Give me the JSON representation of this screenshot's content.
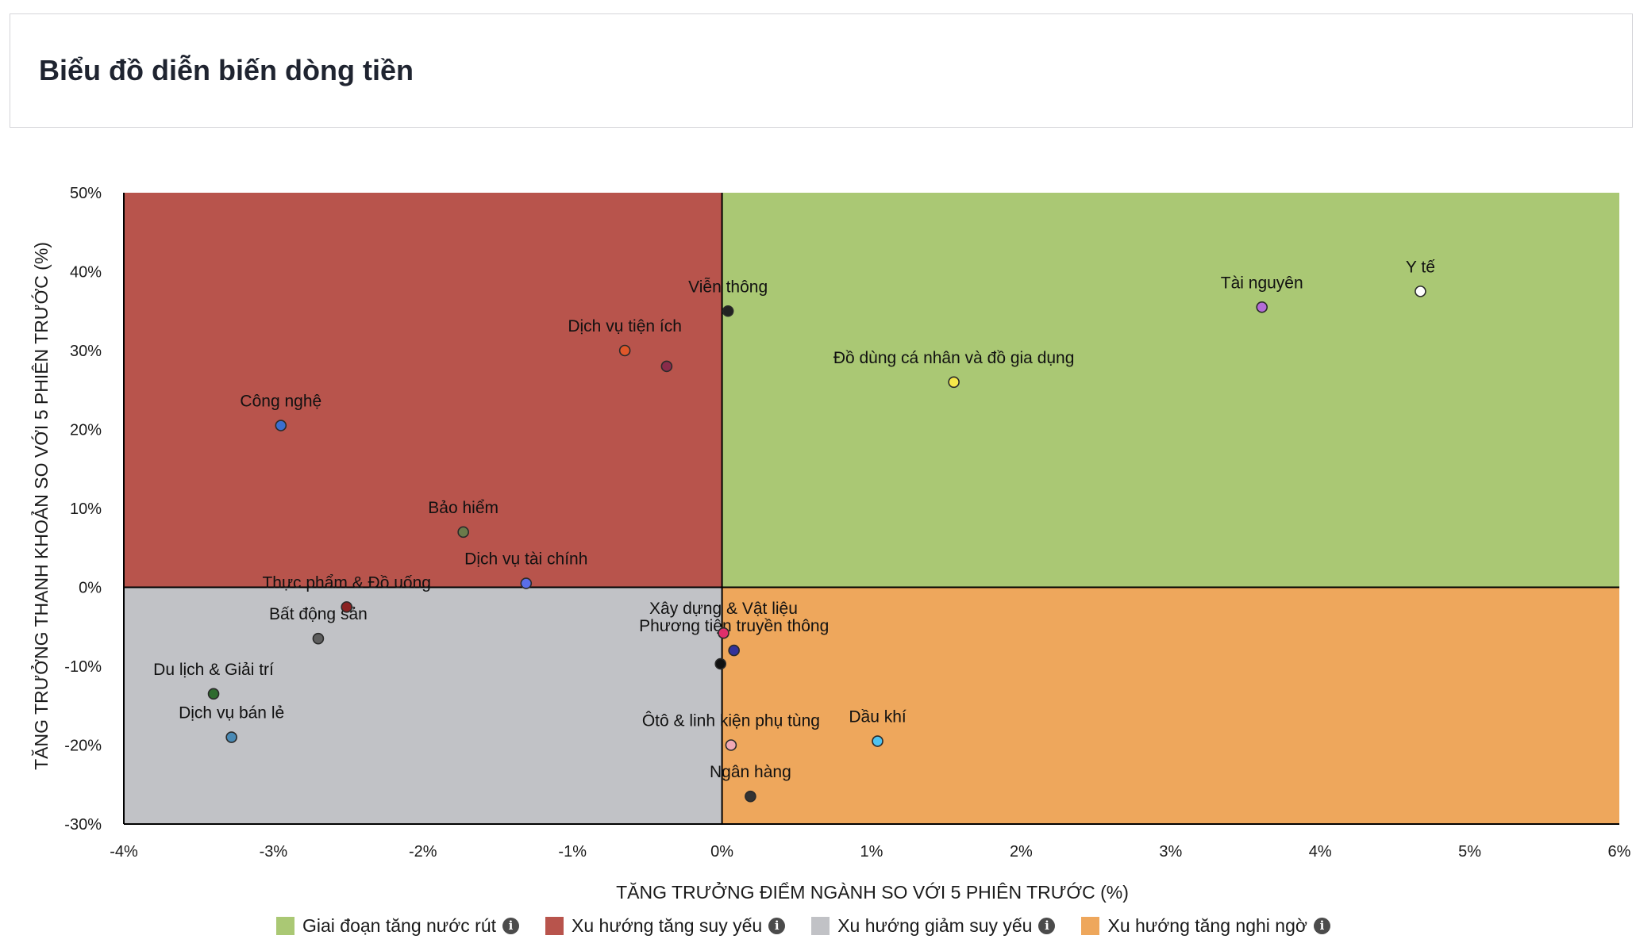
{
  "header": {
    "title": "Biểu đồ diễn biến dòng tiền"
  },
  "chart_data": {
    "type": "scatter",
    "title": "Biểu đồ diễn biến dòng tiền",
    "xlabel": "TĂNG TRƯỞNG ĐIỂM NGÀNH SO VỚI 5 PHIÊN TRƯỚC (%)",
    "ylabel": "TĂNG TRƯỞNG THANH KHOẢN SO VỚI 5 PHIÊN TRƯỚC (%)",
    "xlim": [
      -4,
      6
    ],
    "ylim": [
      -30,
      50
    ],
    "x_ticks": [
      -4,
      -3,
      -2,
      -1,
      0,
      1,
      2,
      3,
      4,
      5,
      6
    ],
    "y_ticks": [
      -30,
      -20,
      -10,
      0,
      10,
      20,
      30,
      40,
      50
    ],
    "x_tick_labels": [
      "-4%",
      "-3%",
      "-2%",
      "-1%",
      "0%",
      "1%",
      "2%",
      "3%",
      "4%",
      "5%",
      "6%"
    ],
    "y_tick_labels": [
      "-30%",
      "-20%",
      "-10%",
      "0%",
      "10%",
      "20%",
      "30%",
      "40%",
      "50%"
    ],
    "quadrants": [
      {
        "name": "Giai đoạn tăng nước rút",
        "x_range": [
          0,
          6
        ],
        "y_range": [
          0,
          50
        ],
        "color": "#aac874"
      },
      {
        "name": "Xu hướng tăng suy yếu",
        "x_range": [
          -4,
          0
        ],
        "y_range": [
          0,
          50
        ],
        "color": "#b8544c"
      },
      {
        "name": "Xu hướng giảm suy yếu",
        "x_range": [
          -4,
          0
        ],
        "y_range": [
          -30,
          0
        ],
        "color": "#c1c2c6"
      },
      {
        "name": "Xu hướng tăng nghi ngờ",
        "x_range": [
          0,
          6
        ],
        "y_range": [
          -30,
          0
        ],
        "color": "#eea75c"
      }
    ],
    "points": [
      {
        "name": "Y tế",
        "x": 4.67,
        "y": 37.5,
        "color": "#ffffff"
      },
      {
        "name": "Tài nguyên",
        "x": 3.61,
        "y": 35.5,
        "color": "#b36cd6"
      },
      {
        "name": "Viễn thông",
        "x": 0.04,
        "y": 35.0,
        "color": "#222222"
      },
      {
        "name": "Đồ dùng cá nhân và đồ gia dụng",
        "x": 1.55,
        "y": 26.0,
        "color": "#f5e84a"
      },
      {
        "name": "Dịch vụ tiện ích",
        "x": -0.65,
        "y": 30.0,
        "color": "#e0572a"
      },
      {
        "name": "",
        "x": -0.37,
        "y": 28.0,
        "color": "#8a2b4a"
      },
      {
        "name": "Công nghệ",
        "x": -2.95,
        "y": 20.5,
        "color": "#3a6fcf"
      },
      {
        "name": "Bảo hiểm",
        "x": -1.73,
        "y": 7.0,
        "color": "#6b7a4a"
      },
      {
        "name": "Dịch vụ tài chính",
        "x": -1.31,
        "y": 0.5,
        "color": "#5a6ee8"
      },
      {
        "name": "Thực phẩm & Đồ uống",
        "x": -2.51,
        "y": -2.5,
        "color": "#8b2222"
      },
      {
        "name": "Bất động sản",
        "x": -2.7,
        "y": -6.5,
        "color": "#5e5e5e"
      },
      {
        "name": "Du lịch & Giải trí",
        "x": -3.4,
        "y": -13.5,
        "color": "#2e6b2e"
      },
      {
        "name": "Dịch vụ bán lẻ",
        "x": -3.28,
        "y": -19.0,
        "color": "#4a8ab5"
      },
      {
        "name": "Xây dựng & Vật liệu",
        "x": 0.01,
        "y": -5.8,
        "color": "#e0306b"
      },
      {
        "name": "Phương tiện truyền thông",
        "x": 0.08,
        "y": -8.0,
        "color": "#33339a"
      },
      {
        "name": "",
        "x": -0.01,
        "y": -9.7,
        "color": "#111111"
      },
      {
        "name": "Ôtô & linh kiện phụ tùng",
        "x": 0.06,
        "y": -20.0,
        "color": "#f0a8b4"
      },
      {
        "name": "Dầu khí",
        "x": 1.04,
        "y": -19.5,
        "color": "#4fc3f0"
      },
      {
        "name": "Ngân hàng",
        "x": 0.19,
        "y": -26.5,
        "color": "#333333"
      }
    ],
    "legend_position": "bottom-center"
  },
  "legend": {
    "items": [
      {
        "label": "Giai đoạn tăng nước rút",
        "color": "#aac874",
        "icon": "info-icon"
      },
      {
        "label": "Xu hướng tăng suy yếu",
        "color": "#b8544c",
        "icon": "info-icon"
      },
      {
        "label": "Xu hướng giảm suy yếu",
        "color": "#c1c2c6",
        "icon": "info-icon"
      },
      {
        "label": "Xu hướng tăng nghi ngờ",
        "color": "#eea75c",
        "icon": "info-icon"
      }
    ],
    "info_glyph": "i"
  }
}
